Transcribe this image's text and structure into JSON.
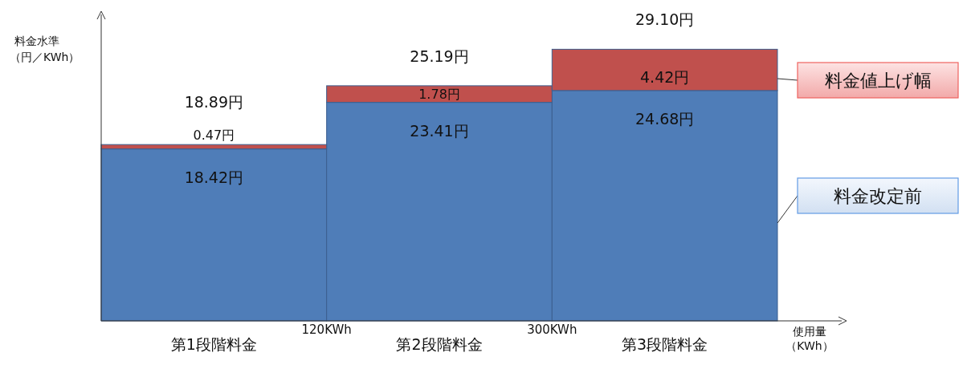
{
  "chart_data": {
    "type": "bar",
    "stacked": true,
    "ylabel": "料金水準（円／KWh）",
    "xlabel": "使用量（KWh）",
    "categories": [
      "第1段階料金",
      "第2段階料金",
      "第3段階料金"
    ],
    "legend": "right",
    "annotations": [
      "120KWh",
      "300KWh"
    ],
    "totals": [
      "18.89円",
      "25.19円",
      "29.10円"
    ],
    "series": [
      {
        "name": "料金改定前",
        "color": "#4f7db8",
        "values": [
          18.42,
          23.41,
          24.68
        ],
        "value_labels": [
          "18.42円",
          "23.41円",
          "24.68円"
        ]
      },
      {
        "name": "料金値上げ幅",
        "color": "#c0504d",
        "values": [
          0.47,
          1.78,
          4.42
        ],
        "value_labels": [
          "0.47円",
          "1.78円",
          "4.42円"
        ]
      }
    ]
  }
}
